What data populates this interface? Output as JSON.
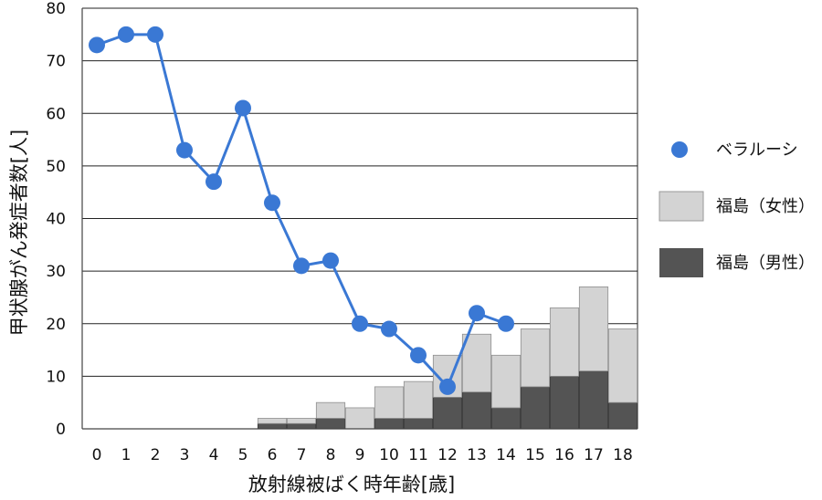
{
  "chart_data": {
    "type": "bar",
    "title": "",
    "xlabel": "放射線被ばく時年齢[歳]",
    "ylabel": "甲状腺がん発症者数[人]",
    "ylim": [
      0,
      80
    ],
    "yticks": [
      0,
      10,
      20,
      30,
      40,
      50,
      60,
      70,
      80
    ],
    "grid": true,
    "legend_position": "right",
    "categories": [
      "0",
      "1",
      "2",
      "3",
      "4",
      "5",
      "6",
      "7",
      "8",
      "9",
      "10",
      "11",
      "12",
      "13",
      "14",
      "15",
      "16",
      "17",
      "18"
    ],
    "series": [
      {
        "name": "ベラルーシ",
        "kind": "line",
        "color": "#3a78d4",
        "values": [
          73,
          75,
          75,
          53,
          47,
          61,
          43,
          31,
          32,
          20,
          19,
          14,
          8,
          22,
          20,
          null,
          null,
          null,
          null
        ]
      },
      {
        "name": "福島（女性）",
        "kind": "stacked-bar",
        "color": "#d3d3d3",
        "values": [
          0,
          0,
          0,
          0,
          0,
          0,
          1,
          1,
          3,
          4,
          6,
          7,
          8,
          11,
          10,
          11,
          13,
          16,
          14
        ]
      },
      {
        "name": "福島（男性）",
        "kind": "stacked-bar",
        "color": "#545454",
        "values": [
          0,
          0,
          0,
          0,
          0,
          0,
          1,
          1,
          2,
          0,
          2,
          2,
          6,
          7,
          4,
          8,
          10,
          11,
          5
        ]
      }
    ]
  }
}
